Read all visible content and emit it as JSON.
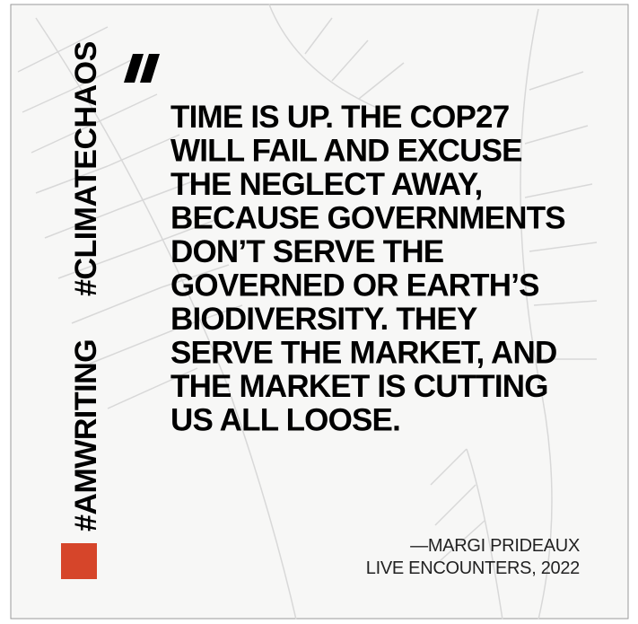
{
  "hashtags": [
    "#AMWRITING",
    "#CLIMATECHAOS"
  ],
  "quote": {
    "lines": [
      "TIME IS UP. THE COP27",
      "WILL FAIL AND EXCUSE",
      "THE NEGLECT AWAY,",
      "BECAUSE GOVERNMENTS",
      "DON’T SERVE THE",
      "GOVERNED OR EARTH’S",
      "BIODIVERSITY. THEY",
      "SERVE THE MARKET, AND",
      "THE MARKET IS CUTTING",
      "US ALL LOOSE."
    ]
  },
  "attribution": {
    "author": "—MARGI PRIDEAUX",
    "source": "LIVE ENCOUNTERS, 2022"
  }
}
